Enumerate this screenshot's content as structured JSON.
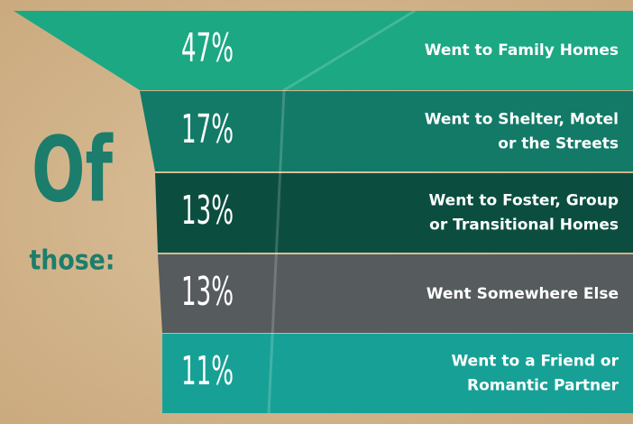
{
  "heading": {
    "big": "Of",
    "small": "those:"
  },
  "rows": [
    {
      "percent": "47%",
      "lines": [
        "Went to Family Homes"
      ]
    },
    {
      "percent": "17%",
      "lines": [
        "Went to Shelter, Motel",
        "or the Streets"
      ]
    },
    {
      "percent": "13%",
      "lines": [
        "Went to Foster, Group",
        "or Transitional Homes"
      ]
    },
    {
      "percent": "13%",
      "lines": [
        "Went Somewhere Else"
      ]
    },
    {
      "percent": "11%",
      "lines": [
        "Went to a Friend or",
        "Romantic Partner"
      ]
    }
  ]
}
